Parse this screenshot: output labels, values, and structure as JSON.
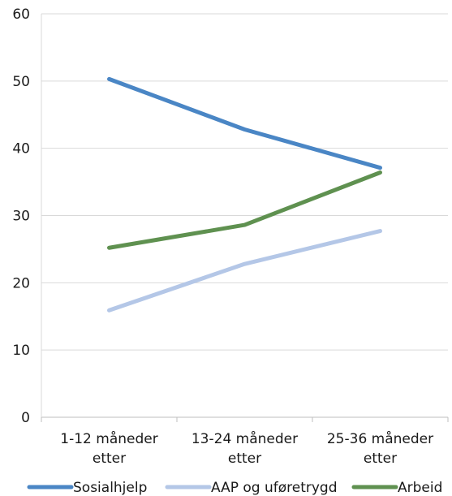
{
  "chart_data": {
    "type": "line",
    "title": "",
    "xlabel": "",
    "ylabel": "",
    "categories": [
      [
        "1-12 måneder",
        "etter"
      ],
      [
        "13-24 måneder",
        "etter"
      ],
      [
        "25-36 måneder",
        "etter"
      ]
    ],
    "ylim": [
      0,
      60
    ],
    "yticks": [
      0,
      10,
      20,
      30,
      40,
      50,
      60
    ],
    "yticks_labels": [
      "0",
      "10",
      "20",
      "30",
      "40",
      "50",
      "60"
    ],
    "grid": true,
    "legend_position": "bottom",
    "series": [
      {
        "name": "Sosialhjelp",
        "color": "#4a86c5",
        "values": [
          50.3,
          42.8,
          37.1
        ]
      },
      {
        "name": "AAP og uføretrygd",
        "color": "#b4c7e7",
        "values": [
          15.9,
          22.8,
          27.7
        ]
      },
      {
        "name": "Arbeid",
        "color": "#5f9150",
        "values": [
          25.2,
          28.6,
          36.4
        ]
      }
    ]
  }
}
